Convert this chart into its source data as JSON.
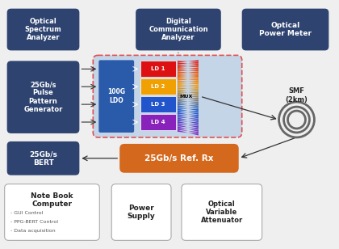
{
  "fig_width": 4.2,
  "fig_height": 3.08,
  "dpi": 100,
  "bg_color": "#efefef",
  "dark_box_color": "#2e4370",
  "dark_box_text": "#ffffff",
  "light_box_color": "#ffffff",
  "light_box_text": "#222222",
  "orange_box_color": "#d4681c",
  "orange_box_text": "#ffffff",
  "dut_bg_color": "#c5d5e8",
  "dut_border_color": "#e05050",
  "ldo_color": "#2a5aaa",
  "ld1_color": "#dd1111",
  "ld2_color": "#f0a000",
  "ld3_color": "#2255cc",
  "ld4_color": "#8822bb",
  "arrow_color": "#333333",
  "smf_label": "SMF\n(2km)",
  "notebook_title": "Note Book\nComputer",
  "notebook_bullets": [
    "- GUI Control",
    "- PPG-BERT Control",
    "- Data acquisition"
  ]
}
